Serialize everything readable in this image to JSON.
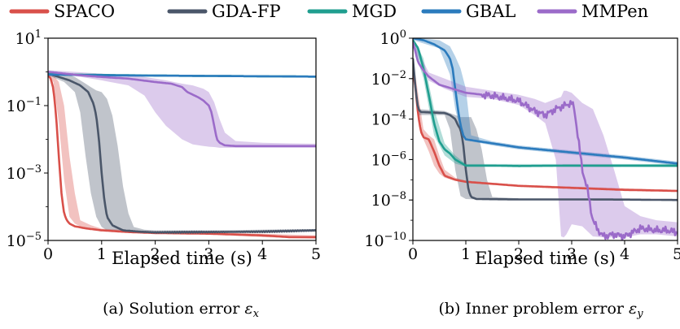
{
  "legend": [
    {
      "name": "SPACO",
      "color": "#d9504a"
    },
    {
      "name": "GDA-FP",
      "color": "#4a5669"
    },
    {
      "name": "MGD",
      "color": "#1f9e8f"
    },
    {
      "name": "GBAL",
      "color": "#2b7bbd"
    },
    {
      "name": "MMPen",
      "color": "#9b6bc9"
    }
  ],
  "chart_data": [
    {
      "type": "line",
      "panel": "a",
      "caption_prefix": "(a) Solution error",
      "caption_symbol": "ε",
      "caption_sub": "x",
      "xlabel": "Elapsed time (s)",
      "ylabel": "",
      "xlim": [
        0,
        5
      ],
      "yscale": "log",
      "ylim_exp": [
        -5,
        1
      ],
      "xticks": [
        0,
        1,
        2,
        3,
        4,
        5
      ],
      "yticks": [
        {
          "exp": -5,
          "label_base": "10",
          "label_exp": "−5"
        },
        {
          "exp": -3,
          "label_base": "10",
          "label_exp": "−3"
        },
        {
          "exp": -1,
          "label_base": "10",
          "label_exp": "−1"
        },
        {
          "exp": 1,
          "label_base": "10",
          "label_exp": "1"
        }
      ],
      "grid": false,
      "series": [
        {
          "name": "SPACO",
          "color": "#d9504a",
          "x": [
            0,
            0.05,
            0.1,
            0.15,
            0.2,
            0.25,
            0.3,
            0.35,
            0.4,
            0.5,
            0.7,
            1.0,
            1.5,
            2,
            3,
            4,
            4.5,
            5
          ],
          "y_exp": [
            -0.1,
            -0.2,
            -0.5,
            -1.3,
            -2.5,
            -3.6,
            -4.2,
            -4.4,
            -4.5,
            -4.58,
            -4.64,
            -4.7,
            -4.75,
            -4.78,
            -4.8,
            -4.85,
            -4.9,
            -4.9
          ],
          "band": {
            "x": [
              0,
              0.1,
              0.2,
              0.3,
              0.4,
              0.5,
              0.6,
              0.8,
              1.0,
              2,
              3,
              4,
              5
            ],
            "lo": [
              -0.1,
              -0.3,
              -1.5,
              -3.2,
              -4.3,
              -4.5,
              -4.58,
              -4.65,
              -4.7,
              -4.8,
              -4.82,
              -4.9,
              -4.95
            ],
            "hi": [
              -0.05,
              -0.1,
              -0.3,
              -1.0,
              -2.5,
              -3.6,
              -4.4,
              -4.55,
              -4.65,
              -4.73,
              -4.76,
              -4.8,
              -4.85
            ]
          }
        },
        {
          "name": "GDA-FP",
          "color": "#4a5669",
          "x": [
            0,
            0.2,
            0.4,
            0.6,
            0.75,
            0.85,
            0.9,
            0.95,
            1.0,
            1.05,
            1.1,
            1.2,
            1.4,
            1.7,
            2,
            3,
            4,
            4.5,
            5
          ],
          "y_exp": [
            -0.05,
            -0.15,
            -0.25,
            -0.4,
            -0.6,
            -0.95,
            -1.3,
            -2.0,
            -3.0,
            -3.8,
            -4.3,
            -4.55,
            -4.7,
            -4.74,
            -4.76,
            -4.75,
            -4.74,
            -4.72,
            -4.7
          ],
          "band": {
            "x": [
              0,
              0.3,
              0.5,
              0.6,
              0.7,
              0.8,
              0.9,
              1.0,
              1.1,
              1.2,
              1.3,
              1.4,
              1.5,
              1.6,
              1.8,
              2,
              3,
              4,
              5
            ],
            "lo": [
              -0.1,
              -0.3,
              -0.6,
              -1.2,
              -2.5,
              -3.6,
              -4.3,
              -4.6,
              -4.7,
              -4.72,
              -4.74,
              -4.75,
              -4.76,
              -4.77,
              -4.78,
              -4.78,
              -4.77,
              -4.76,
              -4.74
            ],
            "hi": [
              0,
              -0.05,
              -0.15,
              -0.25,
              -0.35,
              -0.45,
              -0.55,
              -0.6,
              -0.8,
              -1.3,
              -2.2,
              -3.4,
              -4.2,
              -4.6,
              -4.68,
              -4.7,
              -4.7,
              -4.68,
              -4.66
            ]
          }
        },
        {
          "name": "MGD",
          "color": "#1f9e8f",
          "x": [
            0,
            0.3,
            0.5,
            1,
            1.5,
            2,
            3,
            4,
            5
          ],
          "y_exp": [
            -0.05,
            -0.07,
            -0.08,
            -0.09,
            -0.1,
            -0.11,
            -0.12,
            -0.13,
            -0.14
          ],
          "band": null
        },
        {
          "name": "GBAL",
          "color": "#2b7bbd",
          "x": [
            0,
            0.5,
            1,
            2,
            3,
            4,
            5
          ],
          "y_exp": [
            -0.08,
            -0.09,
            -0.1,
            -0.11,
            -0.12,
            -0.13,
            -0.14
          ],
          "band": null
        },
        {
          "name": "MMPen",
          "color": "#9b6bc9",
          "x": [
            0,
            0.3,
            0.6,
            1,
            1.5,
            2,
            2.3,
            2.5,
            2.6,
            2.8,
            2.9,
            3.0,
            3.05,
            3.1,
            3.15,
            3.2,
            3.3,
            3.5,
            4,
            4.5,
            5
          ],
          "y_exp": [
            0.0,
            -0.05,
            -0.1,
            -0.15,
            -0.2,
            -0.3,
            -0.35,
            -0.45,
            -0.6,
            -0.75,
            -0.85,
            -1.0,
            -1.2,
            -1.6,
            -2.0,
            -2.1,
            -2.18,
            -2.2,
            -2.2,
            -2.2,
            -2.2
          ],
          "band": {
            "x": [
              0,
              0.5,
              1,
              1.5,
              1.8,
              2.0,
              2.2,
              2.5,
              2.7,
              2.9,
              3.0,
              3.1,
              3.2,
              3.3,
              3.5,
              4,
              4.5,
              5
            ],
            "lo": [
              -0.1,
              -0.12,
              -0.25,
              -0.4,
              -0.7,
              -1.2,
              -1.6,
              -2.0,
              -2.15,
              -2.2,
              -2.22,
              -2.23,
              -2.25,
              -2.25,
              -2.25,
              -2.25,
              -2.25,
              -2.25
            ],
            "hi": [
              0.05,
              0,
              -0.05,
              -0.1,
              -0.15,
              -0.2,
              -0.25,
              -0.35,
              -0.4,
              -0.5,
              -0.6,
              -0.9,
              -1.4,
              -1.8,
              -2.05,
              -2.1,
              -2.12,
              -2.13
            ]
          }
        }
      ]
    },
    {
      "type": "line",
      "panel": "b",
      "caption_prefix": "(b) Inner problem error",
      "caption_symbol": "ε",
      "caption_sub": "y",
      "xlabel": "Elapsed time (s)",
      "ylabel": "",
      "xlim": [
        0,
        5
      ],
      "yscale": "log",
      "ylim_exp": [
        -10,
        0
      ],
      "xticks": [
        0,
        1,
        2,
        3,
        4,
        5
      ],
      "yticks": [
        {
          "exp": -10,
          "label_base": "10",
          "label_exp": "−10"
        },
        {
          "exp": -8,
          "label_base": "10",
          "label_exp": "−8"
        },
        {
          "exp": -6,
          "label_base": "10",
          "label_exp": "−6"
        },
        {
          "exp": -4,
          "label_base": "10",
          "label_exp": "−4"
        },
        {
          "exp": -2,
          "label_base": "10",
          "label_exp": "−2"
        },
        {
          "exp": 0,
          "label_base": "10",
          "label_exp": "0"
        }
      ],
      "grid": false,
      "series": [
        {
          "name": "SPACO",
          "color": "#d9504a",
          "x": [
            0,
            0.05,
            0.1,
            0.15,
            0.2,
            0.3,
            0.4,
            0.5,
            0.6,
            0.8,
            1,
            1.5,
            2,
            3,
            4,
            5
          ],
          "y_exp": [
            -1.5,
            -2.5,
            -3.8,
            -4.6,
            -4.9,
            -5.0,
            -5.6,
            -6.3,
            -6.8,
            -7.0,
            -7.1,
            -7.2,
            -7.3,
            -7.4,
            -7.5,
            -7.55
          ],
          "band": {
            "x": [
              0,
              0.2,
              0.3,
              0.4,
              0.5,
              0.6,
              0.8,
              1,
              2,
              5
            ],
            "lo": [
              -2,
              -5.0,
              -5.6,
              -6.3,
              -6.7,
              -6.9,
              -7.05,
              -7.15,
              -7.35,
              -7.6
            ],
            "hi": [
              -1,
              -4.5,
              -4.8,
              -5.0,
              -5.8,
              -6.5,
              -6.9,
              -7.05,
              -7.25,
              -7.5
            ]
          }
        },
        {
          "name": "GDA-FP",
          "color": "#4a5669",
          "x": [
            0,
            0.05,
            0.1,
            0.15,
            0.6,
            0.7,
            0.8,
            0.85,
            0.9,
            0.95,
            1.0,
            1.05,
            1.1,
            1.2,
            1.5,
            2,
            3,
            4,
            5
          ],
          "y_exp": [
            -1.0,
            -2.5,
            -3.5,
            -3.65,
            -3.7,
            -3.8,
            -4.0,
            -4.3,
            -4.5,
            -5.2,
            -6.5,
            -7.5,
            -7.85,
            -7.95,
            -7.96,
            -7.97,
            -7.97,
            -7.98,
            -8.0
          ],
          "band": {
            "x": [
              0.1,
              0.6,
              0.7,
              0.8,
              0.9,
              1.0,
              1.1,
              1.2,
              1.3,
              1.4,
              1.5,
              2,
              5
            ],
            "lo": [
              -3.8,
              -3.8,
              -4.5,
              -6.5,
              -7.8,
              -7.95,
              -7.96,
              -7.97,
              -7.97,
              -7.97,
              -7.97,
              -7.97,
              -8.02
            ],
            "hi": [
              -3.5,
              -3.6,
              -3.7,
              -3.8,
              -3.9,
              -3.9,
              -3.9,
              -4.5,
              -5.5,
              -7.0,
              -7.85,
              -7.92,
              -7.96
            ]
          }
        },
        {
          "name": "MGD",
          "color": "#1f9e8f",
          "x": [
            0,
            0.1,
            0.2,
            0.3,
            0.4,
            0.5,
            0.6,
            0.7,
            0.8,
            1,
            1.5,
            2,
            3,
            4,
            5
          ],
          "y_exp": [
            -0.1,
            -0.5,
            -1.5,
            -2.8,
            -4.2,
            -5.1,
            -5.5,
            -5.7,
            -6.0,
            -6.3,
            -6.3,
            -6.32,
            -6.3,
            -6.3,
            -6.3
          ],
          "band": {
            "x": [
              0,
              0.2,
              0.4,
              0.6,
              0.8,
              1,
              5
            ],
            "lo": [
              -0.3,
              -2.0,
              -4.8,
              -5.8,
              -6.2,
              -6.35,
              -6.38
            ],
            "hi": [
              0,
              -1.0,
              -3.5,
              -5.2,
              -5.8,
              -6.22,
              -6.22
            ]
          }
        },
        {
          "name": "GBAL",
          "color": "#2b7bbd",
          "x": [
            0,
            0.2,
            0.4,
            0.6,
            0.7,
            0.75,
            0.8,
            0.85,
            0.9,
            0.95,
            1.0,
            1.5,
            2,
            3,
            4,
            5
          ],
          "y_exp": [
            0,
            -0.1,
            -0.3,
            -0.6,
            -1.0,
            -1.5,
            -2.5,
            -3.5,
            -4.3,
            -4.8,
            -5.0,
            -5.2,
            -5.4,
            -5.65,
            -5.9,
            -6.2
          ],
          "band": {
            "x": [
              0,
              0.5,
              0.7,
              0.8,
              0.9,
              1.0,
              1.1,
              1.5,
              2,
              3,
              4,
              5
            ],
            "lo": [
              -0.1,
              -0.5,
              -1.8,
              -3.5,
              -4.6,
              -5.05,
              -5.1,
              -5.3,
              -5.5,
              -5.75,
              -6.0,
              -6.3
            ],
            "hi": [
              0.05,
              -0.1,
              -0.4,
              -0.9,
              -1.5,
              -2.5,
              -4.8,
              -5.1,
              -5.3,
              -5.55,
              -5.8,
              -6.1
            ]
          }
        },
        {
          "name": "MMPen",
          "color": "#9b6bc9",
          "x": [
            0,
            0.1,
            0.2,
            0.3,
            0.5,
            1.0,
            1.5,
            2.0,
            2.3,
            2.5,
            2.7,
            2.8,
            2.9,
            3.0,
            3.05,
            3.1,
            3.2,
            3.3,
            3.35,
            3.4,
            3.5,
            3.6,
            3.8,
            4,
            4.3,
            4.6,
            4.8,
            5
          ],
          "y_exp": [
            -0.2,
            -1.2,
            -1.6,
            -1.9,
            -2.3,
            -2.7,
            -2.85,
            -3.1,
            -3.6,
            -3.8,
            -3.5,
            -3.4,
            -3.3,
            -3.2,
            -3.5,
            -4.5,
            -6.5,
            -7.5,
            -8.3,
            -9.0,
            -9.5,
            -9.8,
            -9.7,
            -9.8,
            -9.4,
            -9.5,
            -9.5,
            -9.6
          ],
          "band": {
            "x": [
              0,
              0.3,
              0.6,
              1.0,
              1.5,
              2.0,
              2.3,
              2.5,
              2.7,
              2.8,
              2.85,
              2.9,
              3.0,
              3.2,
              3.4,
              3.6,
              3.8,
              4,
              4.3,
              4.6,
              5
            ],
            "lo": [
              -0.3,
              -2.1,
              -2.5,
              -2.9,
              -3.0,
              -3.3,
              -3.8,
              -4.2,
              -6.0,
              -9.8,
              -9.85,
              -9.7,
              -9.2,
              -9.3,
              -9.8,
              -9.85,
              -9.85,
              -9.85,
              -9.7,
              -9.7,
              -9.8
            ],
            "hi": [
              -0.1,
              -1.7,
              -2.0,
              -2.4,
              -2.6,
              -2.8,
              -3.0,
              -3.2,
              -3.0,
              -2.9,
              -2.6,
              -2.6,
              -2.7,
              -3.2,
              -3.5,
              -4.8,
              -6.5,
              -8.3,
              -8.8,
              -9.0,
              -9.1
            ]
          }
        }
      ]
    }
  ]
}
